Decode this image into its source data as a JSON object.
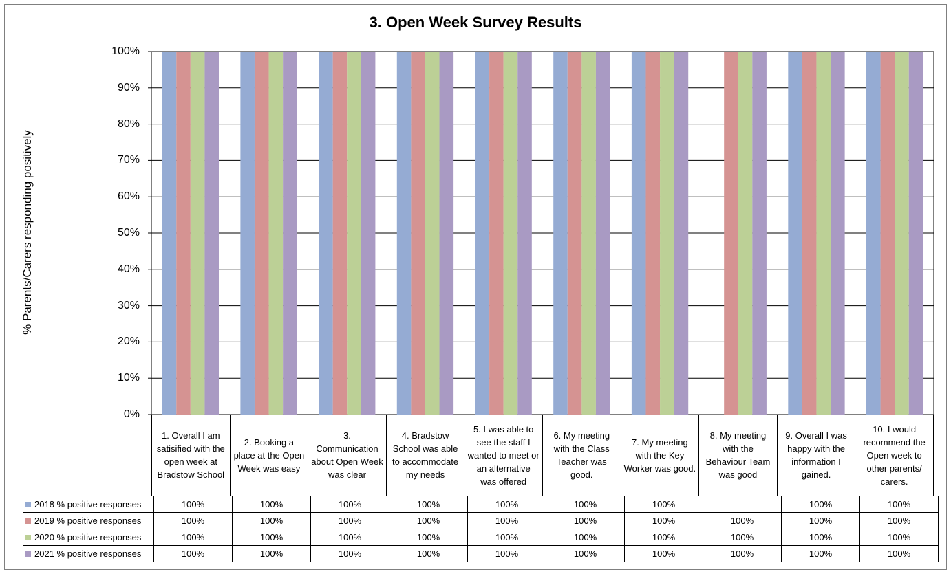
{
  "chart_data": {
    "type": "bar",
    "title": "3. Open Week Survey Results",
    "ylabel": "% Parents/Carers responding positively",
    "xlabel": "",
    "ylim": [
      0,
      100
    ],
    "y_ticks": [
      "0%",
      "10%",
      "20%",
      "30%",
      "40%",
      "50%",
      "60%",
      "70%",
      "80%",
      "90%",
      "100%"
    ],
    "grid": true,
    "legend": "data-table",
    "categories": [
      "1. Overall I am satisified with the open week at Bradstow School",
      "2. Booking a place at the Open Week was easy",
      "3. Communication about Open Week was clear",
      "4. Bradstow School was able to accommodate my needs",
      "5. I was able to see the staff I wanted to meet or an alternative was offered",
      "6. My meeting with the Class Teacher was good.",
      "7. My meeting with the Key Worker was good.",
      "8. My meeting with the Behaviour Team was good",
      "9. Overall I was happy with the information I gained.",
      "10. I would recommend the Open week to other parents/ carers."
    ],
    "series": [
      {
        "name": "2018 % positive responses",
        "color": "#95abd3",
        "values": [
          100,
          100,
          100,
          100,
          100,
          100,
          100,
          null,
          100,
          100
        ],
        "labels": [
          "100%",
          "100%",
          "100%",
          "100%",
          "100%",
          "100%",
          "100%",
          "",
          "100%",
          "100%"
        ]
      },
      {
        "name": "2019 % positive responses",
        "color": "#d59392",
        "values": [
          100,
          100,
          100,
          100,
          100,
          100,
          100,
          100,
          100,
          100
        ],
        "labels": [
          "100%",
          "100%",
          "100%",
          "100%",
          "100%",
          "100%",
          "100%",
          "100%",
          "100%",
          "100%"
        ]
      },
      {
        "name": "2020 % positive responses",
        "color": "#bcd096",
        "values": [
          100,
          100,
          100,
          100,
          100,
          100,
          100,
          100,
          100,
          100
        ],
        "labels": [
          "100%",
          "100%",
          "100%",
          "100%",
          "100%",
          "100%",
          "100%",
          "100%",
          "100%",
          "100%"
        ]
      },
      {
        "name": "2021 % positive responses",
        "color": "#a99ac3",
        "values": [
          100,
          100,
          100,
          100,
          100,
          100,
          100,
          100,
          100,
          100
        ],
        "labels": [
          "100%",
          "100%",
          "100%",
          "100%",
          "100%",
          "100%",
          "100%",
          "100%",
          "100%",
          "100%"
        ]
      }
    ]
  }
}
